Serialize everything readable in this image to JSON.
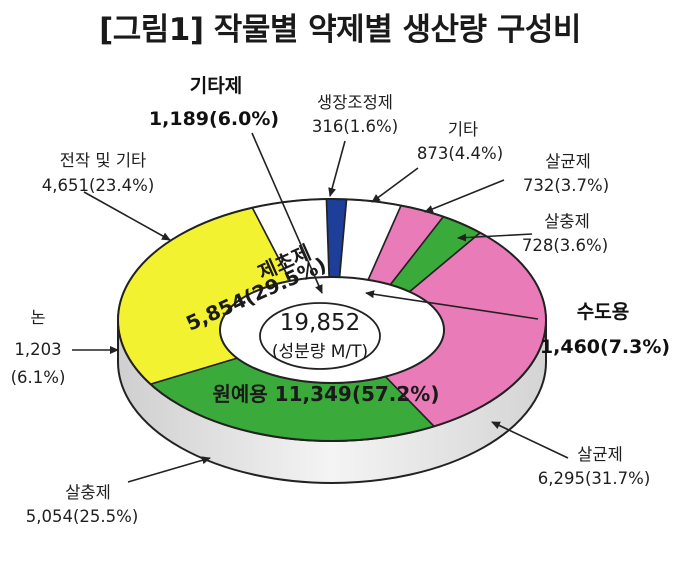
{
  "title": "[그림1] 작물별 약제별 생산량 구성비",
  "chart_data": {
    "type": "pie",
    "title": "[그림1] 작물별 약제별 생산량 구성비",
    "center": {
      "value": "19,852",
      "unit": "(성분량 M/T)"
    },
    "crop_ring": [
      {
        "name": "수도용",
        "value": 1460,
        "percent": 7.3,
        "color": "#ffffff"
      },
      {
        "name": "원예용",
        "value": 11349,
        "percent": 57.2,
        "color": "#ffffff"
      },
      {
        "name": "논",
        "value": 1203,
        "percent": 6.1,
        "color": "#ffffff"
      },
      {
        "name": "전작 및 기타",
        "value": 4651,
        "percent": 23.4,
        "color": "#ffffff"
      }
    ],
    "agent_ring": [
      {
        "name": "생장조정제",
        "value": 316,
        "percent": 1.6,
        "color": "#1d3f9a"
      },
      {
        "name": "기타",
        "value": 873,
        "percent": 4.4,
        "color": "#ffffff"
      },
      {
        "name": "살균제",
        "value": 732,
        "percent": 3.7,
        "color": "#e97cb8"
      },
      {
        "name": "살충제",
        "value": 728,
        "percent": 3.6,
        "color": "#3aab3a"
      },
      {
        "name": "살균제",
        "value": 6295,
        "percent": 31.7,
        "color": "#e97cb8"
      },
      {
        "name": "살충제",
        "value": 5054,
        "percent": 25.5,
        "color": "#3aab3a"
      },
      {
        "name": "제초제",
        "value": 5854,
        "percent": 29.5,
        "color": "#f2f230"
      },
      {
        "name": "기타제",
        "value": 1189,
        "percent": 6.0,
        "color": "#ffffff"
      }
    ],
    "labels": {
      "pgr_name": "생장조정제",
      "pgr_value": "316(1.6%)",
      "etc_name": "기타",
      "etc_value": "873(4.4%)",
      "fung_small_name": "살균제",
      "fung_small_value": "732(3.7%)",
      "ins_small_name": "살충제",
      "ins_small_value": "728(3.6%)",
      "rice_name": "수도용",
      "rice_value": "1,460(7.3%)",
      "fung_big_name": "살균제",
      "fung_big_value": "6,295(31.7%)",
      "ins_big_name": "살충제",
      "ins_big_value": "5,054(25.5%)",
      "paddy_name": "논",
      "paddy_value": "1,203",
      "paddy_pct": "(6.1%)",
      "upland_name": "전작 및 기타",
      "upland_value": "4,651(23.4%)",
      "misc_name": "기타제",
      "misc_value": "1,189(6.0%)",
      "herb_inner_name": "제초제",
      "herb_inner_value": "5,854(29.5%)",
      "hort_inner": "원예용 11,349(57.2%)"
    }
  }
}
